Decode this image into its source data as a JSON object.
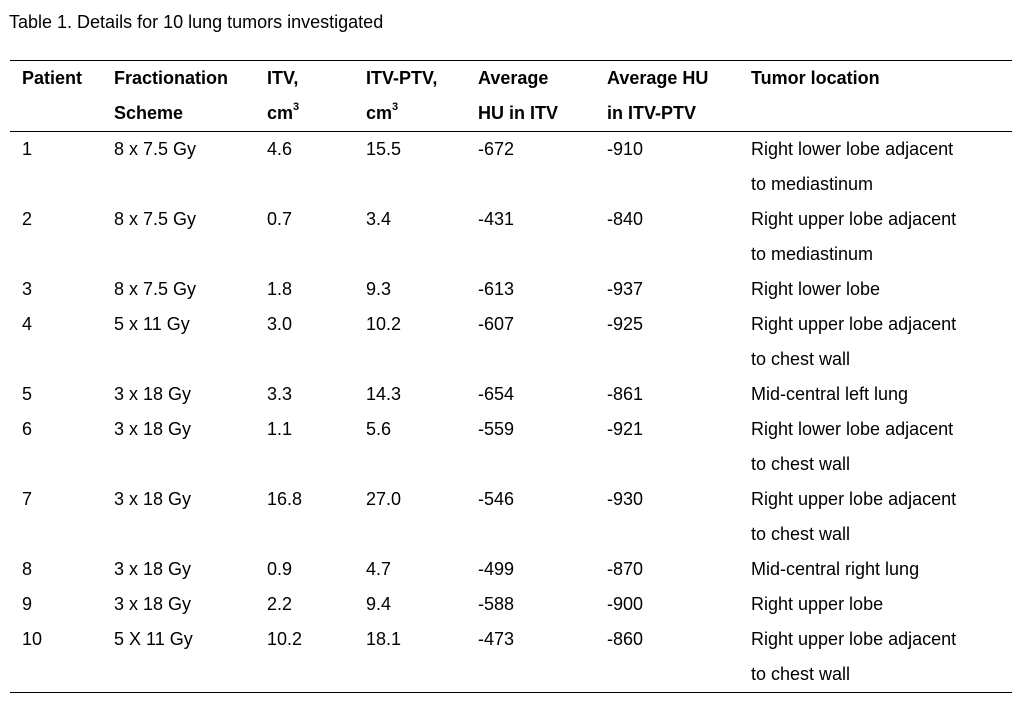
{
  "caption": "Table 1. Details for 10 lung tumors investigated",
  "columns": [
    {
      "line1": "Patient",
      "line2": ""
    },
    {
      "line1": "Fractionation",
      "line2": "Scheme"
    },
    {
      "line1": "ITV,",
      "line2": "cm",
      "sup": "3"
    },
    {
      "line1": "ITV-PTV,",
      "line2": "cm",
      "sup": "3"
    },
    {
      "line1": "Average",
      "line2": "HU in ITV"
    },
    {
      "line1": "Average HU",
      "line2": "in ITV-PTV"
    },
    {
      "line1": "Tumor location",
      "line2": ""
    }
  ],
  "rows": [
    {
      "patient": "1",
      "scheme": "8 x 7.5 Gy",
      "itv": "4.6",
      "itv_ptv": "15.5",
      "hu_itv": "-672",
      "hu_itv_ptv": "-910",
      "location": [
        "Right lower lobe adjacent",
        "to mediastinum"
      ]
    },
    {
      "patient": "2",
      "scheme": "8 x 7.5 Gy",
      "itv": "0.7",
      "itv_ptv": "3.4",
      "hu_itv": "-431",
      "hu_itv_ptv": "-840",
      "location": [
        "Right upper lobe adjacent",
        "to mediastinum"
      ]
    },
    {
      "patient": "3",
      "scheme": "8 x 7.5 Gy",
      "itv": "1.8",
      "itv_ptv": "9.3",
      "hu_itv": "-613",
      "hu_itv_ptv": "-937",
      "location": [
        "Right lower lobe"
      ]
    },
    {
      "patient": "4",
      "scheme": "5 x 11 Gy",
      "itv": "3.0",
      "itv_ptv": "10.2",
      "hu_itv": "-607",
      "hu_itv_ptv": "-925",
      "location": [
        "Right upper lobe adjacent",
        "to chest wall"
      ]
    },
    {
      "patient": "5",
      "scheme": "3 x 18 Gy",
      "itv": "3.3",
      "itv_ptv": "14.3",
      "hu_itv": "-654",
      "hu_itv_ptv": "-861",
      "location": [
        "Mid-central left lung"
      ]
    },
    {
      "patient": "6",
      "scheme": "3 x 18 Gy",
      "itv": "1.1",
      "itv_ptv": "5.6",
      "hu_itv": "-559",
      "hu_itv_ptv": "-921",
      "location": [
        "Right lower lobe adjacent",
        "to chest wall"
      ]
    },
    {
      "patient": "7",
      "scheme": "3 x 18 Gy",
      "itv": "16.8",
      "itv_ptv": "27.0",
      "hu_itv": "-546",
      "hu_itv_ptv": "-930",
      "location": [
        "Right upper lobe adjacent",
        "to chest wall"
      ]
    },
    {
      "patient": "8",
      "scheme": "3 x 18 Gy",
      "itv": "0.9",
      "itv_ptv": "4.7",
      "hu_itv": "-499",
      "hu_itv_ptv": "-870",
      "location": [
        "Mid-central right lung"
      ]
    },
    {
      "patient": "9",
      "scheme": "3 x 18 Gy",
      "itv": "2.2",
      "itv_ptv": "9.4",
      "hu_itv": "-588",
      "hu_itv_ptv": "-900",
      "location": [
        "Right upper lobe"
      ]
    },
    {
      "patient": "10",
      "scheme": "5 X 11 Gy",
      "itv": "10.2",
      "itv_ptv": "18.1",
      "hu_itv": "-473",
      "hu_itv_ptv": "-860",
      "location": [
        "Right upper lobe adjacent",
        "to chest wall"
      ]
    }
  ]
}
